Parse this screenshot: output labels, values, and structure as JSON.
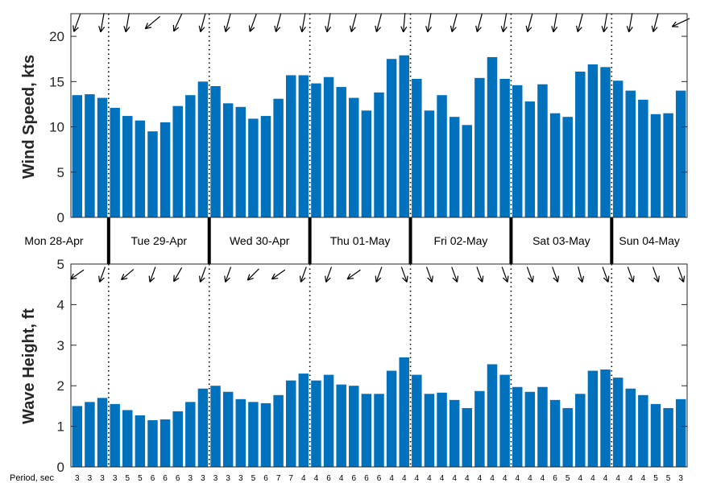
{
  "chart_data": [
    {
      "type": "bar",
      "name": "wind-speed",
      "ylabel": "Wind Speed, kts",
      "ylim": [
        0,
        22.5
      ],
      "yticks": [
        0,
        5,
        10,
        15,
        20
      ],
      "values": [
        13.5,
        13.6,
        13.2,
        12.1,
        11.2,
        10.7,
        9.5,
        10.5,
        12.3,
        13.5,
        15.0,
        14.5,
        12.6,
        12.2,
        10.9,
        11.2,
        13.1,
        15.7,
        15.7,
        14.8,
        15.5,
        14.4,
        13.2,
        11.8,
        13.8,
        17.5,
        17.9,
        15.3,
        11.8,
        13.5,
        11.1,
        10.2,
        15.4,
        17.7,
        15.3,
        14.6,
        12.8,
        14.7,
        11.5,
        11.1,
        16.1,
        16.9,
        16.6,
        15.1,
        14.0,
        13.0,
        11.4,
        11.5,
        14.0
      ],
      "direction_to_deg": [
        200,
        195,
        190,
        195,
        190,
        195,
        230,
        200,
        205,
        195,
        195,
        190,
        195,
        190,
        200,
        195,
        195,
        200,
        190,
        195,
        190,
        195,
        195,
        195,
        195,
        200,
        185,
        195,
        190,
        195,
        195,
        195,
        195,
        185,
        190,
        190,
        195,
        195,
        190,
        200,
        195,
        195,
        190,
        190,
        190,
        195,
        195,
        200,
        245
      ],
      "color": "#0072BD",
      "grid": false
    },
    {
      "type": "bar",
      "name": "wave-height",
      "ylabel": "Wave Height, ft",
      "ylim": [
        0,
        5
      ],
      "yticks": [
        0,
        1,
        2,
        3,
        4,
        5
      ],
      "values": [
        1.5,
        1.6,
        1.7,
        1.55,
        1.4,
        1.27,
        1.15,
        1.17,
        1.37,
        1.6,
        1.93,
        2.0,
        1.85,
        1.67,
        1.6,
        1.57,
        1.77,
        2.13,
        2.3,
        2.13,
        2.27,
        2.03,
        2.0,
        1.8,
        1.8,
        2.37,
        2.7,
        2.27,
        1.8,
        1.83,
        1.65,
        1.45,
        1.87,
        2.53,
        2.27,
        1.97,
        1.85,
        1.97,
        1.65,
        1.45,
        1.8,
        2.37,
        2.4,
        2.2,
        1.93,
        1.77,
        1.55,
        1.45,
        1.67
      ],
      "direction_to_deg": [
        235,
        200,
        200,
        200,
        230,
        225,
        200,
        240,
        210,
        200,
        200,
        200,
        200,
        225,
        225,
        200,
        235,
        240,
        200,
        200,
        200,
        210,
        235,
        240,
        200,
        225,
        160,
        160,
        160,
        160,
        160,
        160,
        160,
        160,
        160,
        160,
        160,
        160,
        160,
        160,
        165,
        165,
        160,
        160,
        160,
        160,
        160,
        160,
        160
      ],
      "periods": [
        3,
        3,
        3,
        3,
        5,
        5,
        6,
        6,
        6,
        3,
        3,
        3,
        3,
        3,
        5,
        6,
        7,
        7,
        4,
        4,
        6,
        4,
        6,
        6,
        6,
        4,
        4,
        4,
        4,
        4,
        4,
        4,
        4,
        4,
        4,
        4,
        4,
        4,
        6,
        5,
        4,
        4,
        4,
        4,
        4,
        4,
        5,
        5,
        3
      ],
      "period_label": "Period, sec",
      "color": "#0072BD",
      "grid": false
    }
  ],
  "days": [
    "Mon 28-Apr",
    "Tue 29-Apr",
    "Wed 30-Apr",
    "Thu 01-May",
    "Fri 02-May",
    "Sat 03-May",
    "Sun 04-May"
  ],
  "day_boundaries_after_bar": [
    2,
    10,
    18,
    26,
    34,
    42
  ]
}
